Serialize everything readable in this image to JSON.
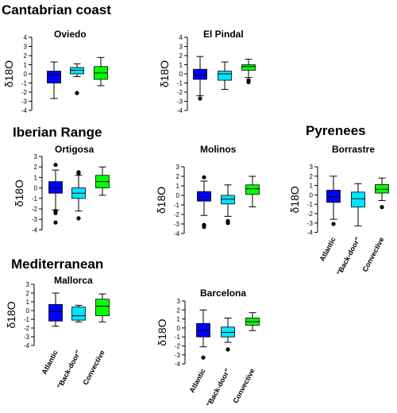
{
  "regions": [
    {
      "key": "cantabrian",
      "label": "Cantabrian coast"
    },
    {
      "key": "iberian",
      "label": "Iberian Range"
    },
    {
      "key": "pyrenees",
      "label": "Pyrenees"
    },
    {
      "key": "mediterranean",
      "label": "Mediterranean"
    }
  ],
  "colors": {
    "atlantic": "#0000ff",
    "back_door": "#00e5ff",
    "convective": "#00ff00"
  },
  "chart_data": [
    {
      "type": "box",
      "region": "Cantabrian coast",
      "title": "Oviedo",
      "ylabel": "δ18O",
      "ylim": [
        -4,
        4
      ],
      "yticks": [
        4,
        3,
        2,
        1,
        0,
        -1,
        -2,
        -3,
        -4
      ],
      "categories": [],
      "series": [
        {
          "name": "Atlantic",
          "color": "#0000ff",
          "whisker_low": -2.7,
          "q1": -1.0,
          "median": -0.1,
          "q3": 0.3,
          "whisker_high": 1.3,
          "outliers": []
        },
        {
          "name": "\"Back-door\"",
          "color": "#00e5ff",
          "whisker_low": -0.3,
          "q1": 0.0,
          "median": 0.4,
          "q3": 0.7,
          "whisker_high": 1.1,
          "outliers": [
            -2.1
          ]
        },
        {
          "name": "Convective",
          "color": "#00ff00",
          "whisker_low": -1.3,
          "q1": -0.6,
          "median": 0.1,
          "q3": 0.8,
          "whisker_high": 1.8,
          "outliers": []
        }
      ]
    },
    {
      "type": "box",
      "region": "Cantabrian coast",
      "title": "El Pindal",
      "ylabel": "δ18O",
      "ylim": [
        -4,
        4
      ],
      "yticks": [
        4,
        3,
        2,
        1,
        0,
        -1,
        -2,
        -3,
        -4
      ],
      "categories": [],
      "series": [
        {
          "name": "Atlantic",
          "color": "#0000ff",
          "whisker_low": -2.4,
          "q1": -0.6,
          "median": -0.1,
          "q3": 0.5,
          "whisker_high": 1.9,
          "outliers": [
            -2.7
          ]
        },
        {
          "name": "\"Back-door\"",
          "color": "#00e5ff",
          "whisker_low": -1.7,
          "q1": -0.7,
          "median": 0.0,
          "q3": 0.3,
          "whisker_high": 1.3,
          "outliers": []
        },
        {
          "name": "Convective",
          "color": "#00ff00",
          "whisker_low": -0.4,
          "q1": 0.4,
          "median": 0.8,
          "q3": 1.0,
          "whisker_high": 1.6,
          "outliers": [
            -0.7,
            -0.9
          ]
        }
      ]
    },
    {
      "type": "box",
      "region": "Iberian Range",
      "title": "Ortigosa",
      "ylabel": "δ18O",
      "ylim": [
        -4,
        3
      ],
      "yticks": [
        3,
        2,
        1,
        0,
        -1,
        -2,
        -3,
        -4
      ],
      "categories": [],
      "series": [
        {
          "name": "Atlantic",
          "color": "#0000ff",
          "whisker_low": -2.1,
          "q1": -0.5,
          "median": 0.0,
          "q3": 0.6,
          "whisker_high": 1.7,
          "outliers": [
            2.2,
            -2.2,
            -2.4,
            -3.3
          ]
        },
        {
          "name": "\"Back-door\"",
          "color": "#00e5ff",
          "whisker_low": -2.2,
          "q1": -1.0,
          "median": -0.5,
          "q3": 0.0,
          "whisker_high": 1.2,
          "outliers": [
            1.4,
            1.5,
            -2.9
          ]
        },
        {
          "name": "Convective",
          "color": "#00ff00",
          "whisker_low": -0.7,
          "q1": 0.0,
          "median": 0.6,
          "q3": 1.2,
          "whisker_high": 2.0,
          "outliers": []
        }
      ]
    },
    {
      "type": "box",
      "region": "Iberian Range",
      "title": "Molinos",
      "ylabel": "δ18O",
      "ylim": [
        -4,
        3
      ],
      "yticks": [
        3,
        2,
        1,
        0,
        -1,
        -2,
        -3,
        -4
      ],
      "categories": [],
      "series": [
        {
          "name": "Atlantic",
          "color": "#0000ff",
          "whisker_low": -2.1,
          "q1": -0.6,
          "median": -0.1,
          "q3": 0.4,
          "whisker_high": 1.5,
          "outliers": [
            1.9,
            -3.1,
            -3.3
          ]
        },
        {
          "name": "\"Back-door\"",
          "color": "#00e5ff",
          "whisker_low": -2.2,
          "q1": -0.9,
          "median": -0.4,
          "q3": 0.0,
          "whisker_high": 1.1,
          "outliers": [
            -2.7,
            -2.9
          ]
        },
        {
          "name": "Convective",
          "color": "#00ff00",
          "whisker_low": -1.2,
          "q1": 0.1,
          "median": 0.7,
          "q3": 1.1,
          "whisker_high": 2.0,
          "outliers": []
        }
      ]
    },
    {
      "type": "box",
      "region": "Pyrenees",
      "title": "Borrastre",
      "ylabel": "δ18O",
      "ylim": [
        -4,
        3
      ],
      "yticks": [
        3,
        2,
        1,
        0,
        -1,
        -2,
        -3,
        -4
      ],
      "categories": [
        "Atlantic",
        "\"Back-door\"",
        "Convective"
      ],
      "series": [
        {
          "name": "Atlantic",
          "color": "#0000ff",
          "whisker_low": -2.6,
          "q1": -0.8,
          "median": -0.2,
          "q3": 0.5,
          "whisker_high": 2.0,
          "outliers": [
            -3.1
          ]
        },
        {
          "name": "\"Back-door\"",
          "color": "#00e5ff",
          "whisker_low": -3.3,
          "q1": -1.3,
          "median": -0.4,
          "q3": 0.3,
          "whisker_high": 1.2,
          "outliers": []
        },
        {
          "name": "Convective",
          "color": "#00ff00",
          "whisker_low": -0.6,
          "q1": 0.2,
          "median": 0.6,
          "q3": 1.1,
          "whisker_high": 1.8,
          "outliers": [
            -1.3
          ]
        }
      ]
    },
    {
      "type": "box",
      "region": "Mediterranean",
      "title": "Mallorca",
      "ylabel": "δ18O",
      "ylim": [
        -4,
        3
      ],
      "yticks": [
        3,
        2,
        1,
        0,
        -1,
        -2,
        -3,
        -4
      ],
      "categories": [
        "Atlantic",
        "\"Back-door\"",
        "Convective"
      ],
      "series": [
        {
          "name": "Atlantic",
          "color": "#0000ff",
          "whisker_low": -1.8,
          "q1": -1.2,
          "median": -0.1,
          "q3": 0.7,
          "whisker_high": 2.0,
          "outliers": []
        },
        {
          "name": "\"Back-door\"",
          "color": "#00e5ff",
          "whisker_low": -1.3,
          "q1": -1.1,
          "median": -0.6,
          "q3": 0.4,
          "whisker_high": 0.6,
          "outliers": []
        },
        {
          "name": "Convective",
          "color": "#00ff00",
          "whisker_low": -1.3,
          "q1": -0.6,
          "median": 0.5,
          "q3": 1.3,
          "whisker_high": 1.9,
          "outliers": []
        }
      ]
    },
    {
      "type": "box",
      "region": "Mediterranean",
      "title": "Barcelona",
      "ylabel": "δ18O",
      "ylim": [
        -4,
        3
      ],
      "yticks": [
        3,
        2,
        1,
        0,
        -1,
        -2,
        -3,
        -4
      ],
      "categories": [
        "Atlantic",
        "\"Back-door\"",
        "Convective"
      ],
      "series": [
        {
          "name": "Atlantic",
          "color": "#0000ff",
          "whisker_low": -2.1,
          "q1": -1.0,
          "median": -0.3,
          "q3": 0.5,
          "whisker_high": 2.0,
          "outliers": [
            -3.3
          ]
        },
        {
          "name": "\"Back-door\"",
          "color": "#00e5ff",
          "whisker_low": -1.6,
          "q1": -1.0,
          "median": -0.5,
          "q3": 0.1,
          "whisker_high": 1.1,
          "outliers": [
            -2.4
          ]
        },
        {
          "name": "Convective",
          "color": "#00ff00",
          "whisker_low": -0.3,
          "q1": 0.3,
          "median": 0.7,
          "q3": 1.1,
          "whisker_high": 1.7,
          "outliers": []
        }
      ]
    }
  ]
}
